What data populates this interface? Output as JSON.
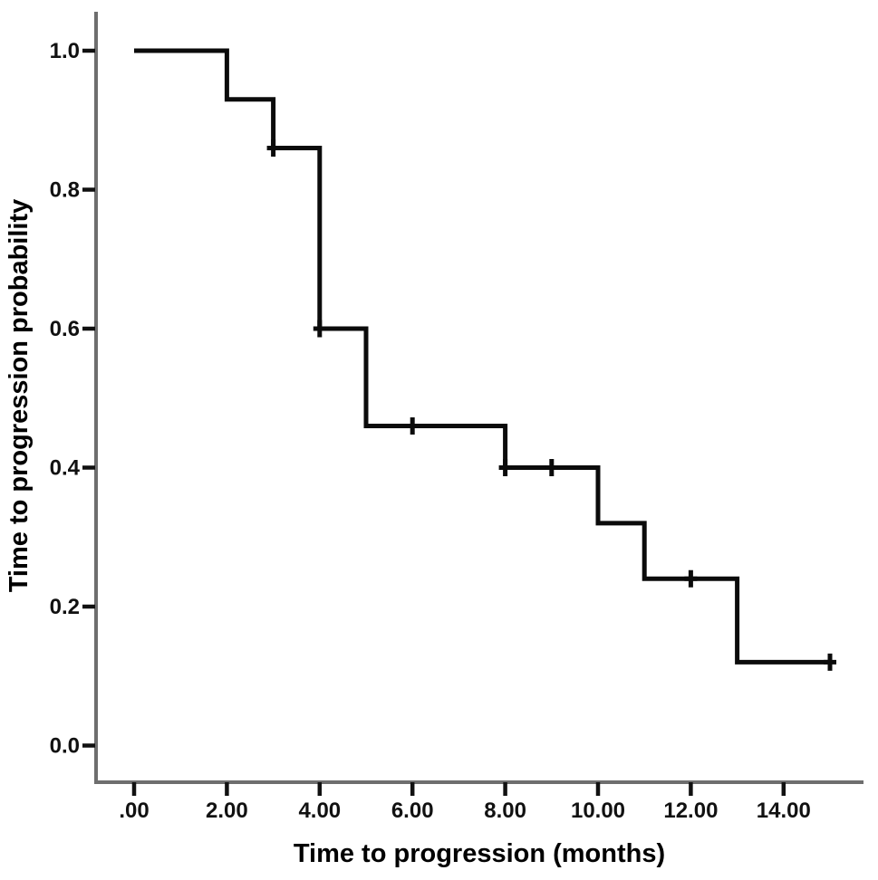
{
  "figure": {
    "background": "#ffffff"
  },
  "chart_data": {
    "type": "line",
    "subtype": "kaplan-meier-step-function",
    "title": "",
    "xlabel": "Time to progression (months)",
    "ylabel": "Time to progression probability",
    "x_ticks": [
      ".00",
      "2.00",
      "4.00",
      "6.00",
      "8.00",
      "10.00",
      "12.00",
      "14.00"
    ],
    "x_tick_values": [
      0,
      2,
      4,
      6,
      8,
      10,
      12,
      14
    ],
    "y_ticks": [
      "1.0",
      "0.8",
      "0.6",
      "0.4",
      "0.2",
      "0.0"
    ],
    "y_tick_values": [
      1.0,
      0.8,
      0.6,
      0.4,
      0.2,
      0.0
    ],
    "xlim": [
      0,
      15.7
    ],
    "ylim": [
      0,
      1.05
    ],
    "grid": false,
    "legend": false,
    "series": [
      {
        "name": "time-to-progression-probability",
        "steps": [
          {
            "time": 0,
            "prob": 1.0
          },
          {
            "time": 2,
            "prob": 0.93
          },
          {
            "time": 3,
            "prob": 0.86
          },
          {
            "time": 4,
            "prob": 0.6
          },
          {
            "time": 5,
            "prob": 0.46
          },
          {
            "time": 8,
            "prob": 0.4
          },
          {
            "time": 10,
            "prob": 0.32
          },
          {
            "time": 11,
            "prob": 0.24
          },
          {
            "time": 13,
            "prob": 0.12
          }
        ],
        "end_time": 15,
        "censored": [
          {
            "time": 3,
            "prob": 0.86
          },
          {
            "time": 4,
            "prob": 0.6
          },
          {
            "time": 6,
            "prob": 0.46
          },
          {
            "time": 8,
            "prob": 0.4
          },
          {
            "time": 9,
            "prob": 0.4
          },
          {
            "time": 12,
            "prob": 0.24
          },
          {
            "time": 15,
            "prob": 0.12
          }
        ]
      }
    ],
    "colors": {
      "line": "#0b0b0b",
      "axis": "#6e6e6e",
      "tick": "#111111",
      "text": "#111111"
    }
  }
}
